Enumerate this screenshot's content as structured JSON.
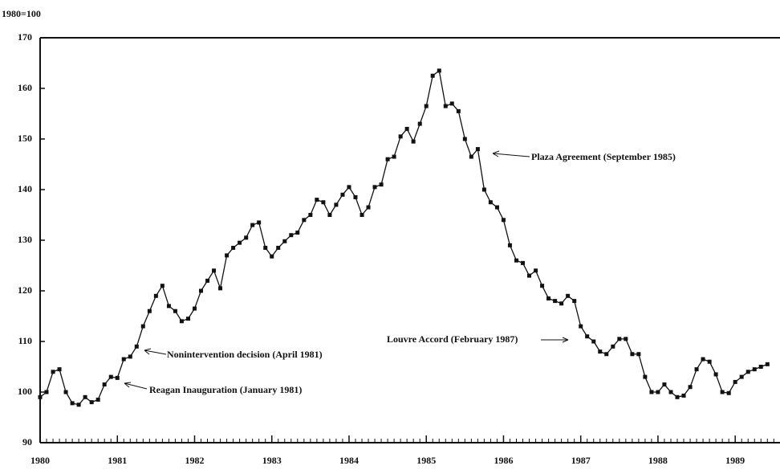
{
  "chart_data": {
    "type": "line",
    "y_label": "1980=100",
    "x": [
      1980.0,
      1980.083,
      1980.167,
      1980.25,
      1980.333,
      1980.417,
      1980.5,
      1980.583,
      1980.667,
      1980.75,
      1980.833,
      1980.917,
      1981.0,
      1981.083,
      1981.167,
      1981.25,
      1981.333,
      1981.417,
      1981.5,
      1981.583,
      1981.667,
      1981.75,
      1981.833,
      1981.917,
      1982.0,
      1982.083,
      1982.167,
      1982.25,
      1982.333,
      1982.417,
      1982.5,
      1982.583,
      1982.667,
      1982.75,
      1982.833,
      1982.917,
      1983.0,
      1983.083,
      1983.167,
      1983.25,
      1983.333,
      1983.417,
      1983.5,
      1983.583,
      1983.667,
      1983.75,
      1983.833,
      1983.917,
      1984.0,
      1984.083,
      1984.167,
      1984.25,
      1984.333,
      1984.417,
      1984.5,
      1984.583,
      1984.667,
      1984.75,
      1984.833,
      1984.917,
      1985.0,
      1985.083,
      1985.167,
      1985.25,
      1985.333,
      1985.417,
      1985.5,
      1985.583,
      1985.667,
      1985.75,
      1985.833,
      1985.917,
      1986.0,
      1986.083,
      1986.167,
      1986.25,
      1986.333,
      1986.417,
      1986.5,
      1986.583,
      1986.667,
      1986.75,
      1986.833,
      1986.917,
      1987.0,
      1987.083,
      1987.167,
      1987.25,
      1987.333,
      1987.417,
      1987.5,
      1987.583,
      1987.667,
      1987.75,
      1987.833,
      1987.917,
      1988.0,
      1988.083,
      1988.167,
      1988.25,
      1988.333,
      1988.417,
      1988.5,
      1988.583,
      1988.667,
      1988.75,
      1988.833,
      1988.917,
      1989.0,
      1989.083,
      1989.167,
      1989.25,
      1989.333,
      1989.417
    ],
    "series": [
      {
        "color": "#111111",
        "values": [
          99,
          100,
          104,
          104.5,
          100,
          97.8,
          97.5,
          99,
          98,
          98.5,
          101.5,
          103,
          102.8,
          106.5,
          107,
          109,
          113,
          116,
          119,
          121,
          117,
          116,
          114,
          114.5,
          116.5,
          120,
          122,
          124,
          120.5,
          127,
          128.5,
          129.5,
          130.5,
          133,
          133.5,
          128.5,
          126.8,
          128.5,
          129.8,
          131,
          131.5,
          134,
          135,
          138,
          137.5,
          135,
          137,
          139,
          140.5,
          138.5,
          135,
          136.5,
          140.5,
          141,
          146,
          146.5,
          150.5,
          152,
          149.5,
          153,
          156.5,
          162.5,
          163.5,
          156.5,
          157,
          155.5,
          150,
          146.5,
          148,
          140,
          137.5,
          136.5,
          134,
          129,
          126,
          125.5,
          123,
          124,
          121,
          118.5,
          118,
          117.5,
          119,
          118,
          113,
          111,
          110,
          108,
          107.5,
          109,
          110.5,
          110.5,
          107.5,
          107.5,
          103,
          100,
          100,
          101.5,
          100,
          99,
          99.3,
          101,
          104.5,
          106.5,
          106,
          103.5,
          100,
          99.8,
          102,
          103,
          104,
          104.5,
          105,
          105.5
        ]
      }
    ],
    "xlim": [
      1980,
      1989.58
    ],
    "xticks": [
      1980,
      1981,
      1982,
      1983,
      1984,
      1985,
      1986,
      1987,
      1988,
      1989
    ],
    "ylim": [
      90,
      170
    ],
    "yticks": [
      90,
      100,
      110,
      120,
      130,
      140,
      150,
      160,
      170
    ],
    "annotations": [
      "Plaza Agreement (September 1985)",
      "Louvre Accord (February 1987)",
      "Nonintervention decision (April 1981)",
      "Reagan Inauguration (January 1981)"
    ]
  }
}
